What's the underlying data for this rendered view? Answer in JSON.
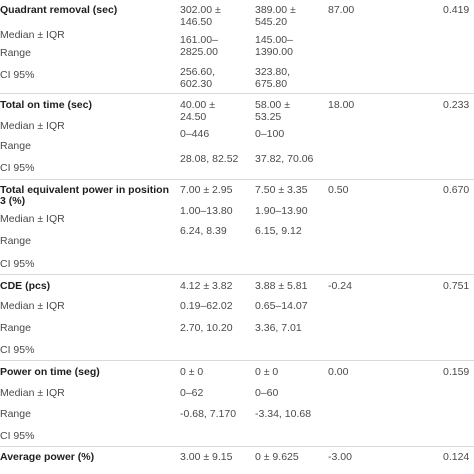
{
  "rows": [
    {
      "header": "Quadrant removal (sec)",
      "group1_mean_sd": "302.00 ±\n146.50",
      "group2_mean_sd": "389.00 ±\n545.20",
      "statistic": "87.00",
      "p_value": "0.419",
      "labels": [
        "Median ± IQR",
        "Range",
        "CI 95%"
      ],
      "group1_lines": [
        "161.00–",
        "2825.00",
        "256.60,",
        "602.30"
      ],
      "group2_lines": [
        "145.00–",
        "1390.00",
        "323.80,",
        "675.80"
      ]
    },
    {
      "header": "Total on time (sec)",
      "group1_mean_sd": "40.00 ±\n24.50",
      "group2_mean_sd": "58.00 ±\n53.25",
      "statistic": "18.00",
      "p_value": "0.233",
      "labels": [
        "Median ± IQR",
        "Range",
        "CI 95%"
      ],
      "group1_lines": [
        "0–446",
        "28.08, 82.52"
      ],
      "group2_lines": [
        "0–100",
        "37.82, 70.06"
      ]
    },
    {
      "header_lines": [
        "Total equivalent power in position",
        "3 (%)"
      ],
      "group1_mean_sd": "7.00 ± 2.95",
      "group2_mean_sd": "7.50 ± 3.35",
      "statistic": "0.50",
      "p_value": "0.670",
      "labels": [
        "Median ± IQR",
        "Range",
        "CI 95%"
      ],
      "group1_lines": [
        "1.00–13.80",
        "6.24, 8.39"
      ],
      "group2_lines": [
        "1.90–13.90",
        "6.15, 9.12"
      ]
    },
    {
      "header": "CDE (pcs)",
      "group1_mean_sd": "4.12 ± 3.82",
      "group2_mean_sd": "3.88 ± 5.81",
      "statistic": "-0.24",
      "p_value": "0.751",
      "labels": [
        "Median ± IQR",
        "Range",
        "CI 95%"
      ],
      "group1_lines": [
        "0.19–62.02",
        "2.70, 10.20"
      ],
      "group2_lines": [
        "0.65–14.07",
        "3.36, 7.01"
      ]
    },
    {
      "header": "Power on time (seg)",
      "group1_mean_sd": "0 ± 0",
      "group2_mean_sd": "0 ± 0",
      "statistic": "0.00",
      "p_value": "0.159",
      "labels": [
        "Median ± IQR",
        "Range",
        "CI 95%"
      ],
      "group1_lines": [
        "0–62",
        "-0.68, 7.170"
      ],
      "group2_lines": [
        "0–60",
        "-3.34, 10.68"
      ]
    },
    {
      "header": "Average power (%)",
      "group1_mean_sd": "3.00 ± 9.15",
      "group2_mean_sd": "0 ± 9.625",
      "statistic": "-3.00",
      "p_value": "0.124"
    }
  ]
}
